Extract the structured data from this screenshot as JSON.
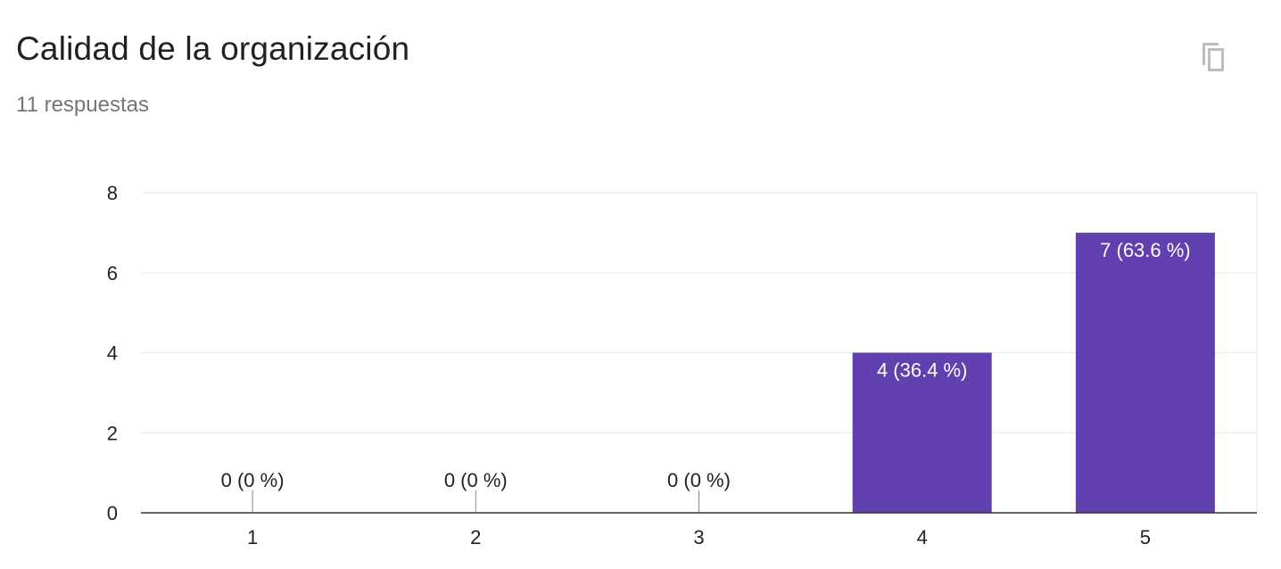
{
  "header": {
    "title": "Calidad de la organización",
    "subtitle": "11 respuestas",
    "copy_icon": "copy-icon"
  },
  "colors": {
    "bar": "#6240b0",
    "grid": "#e6e6e6",
    "axis": "#333333",
    "inner_label": "#ffffff",
    "outer_label": "#222222"
  },
  "chart_data": {
    "type": "bar",
    "title": "",
    "xlabel": "",
    "ylabel": "",
    "categories": [
      "1",
      "2",
      "3",
      "4",
      "5"
    ],
    "values": [
      0,
      0,
      0,
      4,
      7
    ],
    "data_labels": [
      "0 (0 %)",
      "0 (0 %)",
      "0 (0 %)",
      "4 (36.4 %)",
      "7 (63.6 %)"
    ],
    "ylim": [
      0,
      8
    ],
    "yticks": [
      0,
      2,
      4,
      6,
      8
    ],
    "grid": true,
    "legend": "none"
  }
}
